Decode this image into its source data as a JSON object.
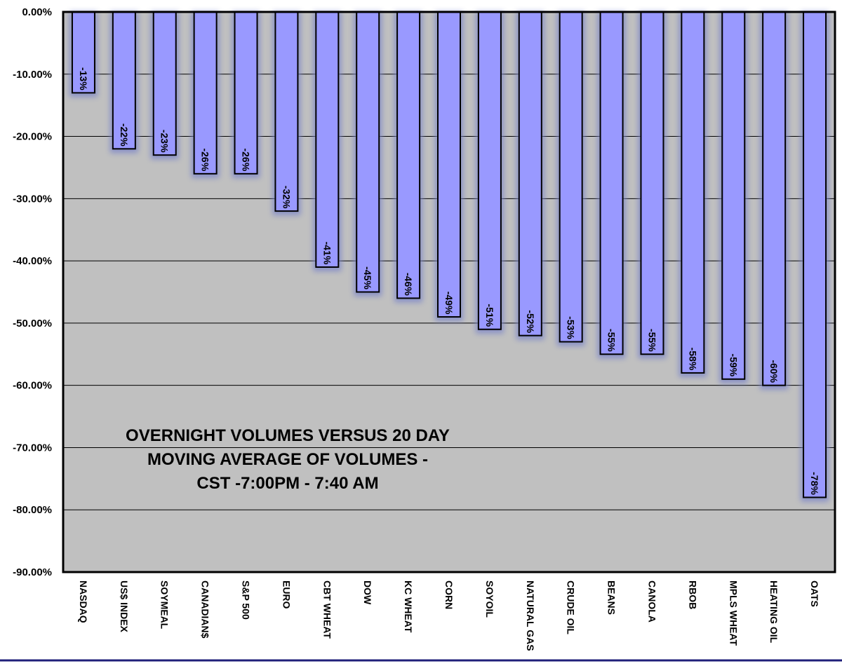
{
  "chart_data": {
    "type": "bar",
    "title_lines": [
      "OVERNIGHT VOLUMES VERSUS 20 DAY",
      "MOVING AVERAGE OF VOLUMES -",
      "CST  -7:00PM - 7:40 AM"
    ],
    "categories": [
      "NASDAQ",
      "US$ INDEX",
      "SOYMEAL",
      "CANADIAN$",
      "S&P 500",
      "EURO",
      "CBT WHEAT",
      "DOW",
      "KC WHEAT",
      "CORN",
      "SOYOIL",
      "NATURAL GAS",
      "CRUDE OIL",
      "BEANS",
      "CANOLA",
      "RBOB",
      "MPLS WHEAT",
      "HEATING OIL",
      "OATS"
    ],
    "values": [
      -13,
      -22,
      -23,
      -26,
      -26,
      -32,
      -41,
      -45,
      -46,
      -49,
      -51,
      -52,
      -53,
      -55,
      -55,
      -58,
      -59,
      -60,
      -78
    ],
    "data_labels": [
      "-13%",
      "-22%",
      "-23%",
      "-26%",
      "-26%",
      "-32%",
      "-41%",
      "-45%",
      "-46%",
      "-49%",
      "-51%",
      "-52%",
      "-53%",
      "-55%",
      "-55%",
      "-58%",
      "-59%",
      "-60%",
      "-78%"
    ],
    "yticks": [
      0,
      -10,
      -20,
      -30,
      -40,
      -50,
      -60,
      -70,
      -80,
      -90
    ],
    "ytick_labels": [
      "0.00%",
      "-10.00%",
      "-20.00%",
      "-30.00%",
      "-40.00%",
      "-50.00%",
      "-60.00%",
      "-70.00%",
      "-80.00%",
      "-90.00%"
    ],
    "ylim": [
      -90,
      0
    ],
    "xlabel": "",
    "ylabel": "",
    "grid": true,
    "legend": "none",
    "colors": {
      "bar": "#9999ff",
      "bar_glow": "#7d86c8",
      "bar_edge": "#000000",
      "plot_bg": "#c0c0c0",
      "gridline": "#000000",
      "frame": "#000000",
      "bottom_rule": "#1f1f7a"
    }
  }
}
